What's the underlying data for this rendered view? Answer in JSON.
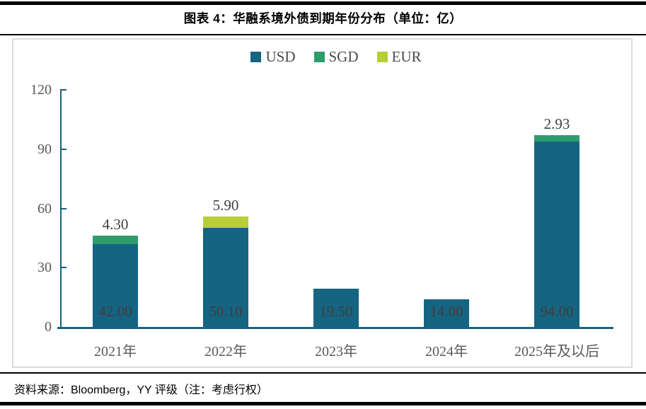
{
  "header": {
    "title": "图表 4：华融系境外债到期年份分布（单位：亿）"
  },
  "footer": {
    "source": "资料来源：Bloomberg，YY 评级（注：考虑行权）"
  },
  "colors": {
    "usd": "#156481",
    "sgd": "#2F9C6C",
    "eur": "#B7CE38",
    "axis": "#156481",
    "axis_text": "#595959",
    "value_text": "#404040"
  },
  "chart_data": {
    "type": "bar",
    "stacked": true,
    "title": "图表 4：华融系境外债到期年份分布（单位：亿）",
    "categories": [
      "2021年",
      "2022年",
      "2023年",
      "2024年",
      "2025年及以后"
    ],
    "series": [
      {
        "name": "USD",
        "color": "#156481",
        "values": [
          42.0,
          50.1,
          19.5,
          14.0,
          94.0
        ]
      },
      {
        "name": "SGD",
        "color": "#2F9C6C",
        "values": [
          4.3,
          0,
          0,
          0,
          2.93
        ]
      },
      {
        "name": "EUR",
        "color": "#B7CE38",
        "values": [
          0,
          5.9,
          0,
          0,
          0
        ]
      }
    ],
    "inside_labels": [
      "42.00",
      "50.10",
      "19.50",
      "14.00",
      "94.00"
    ],
    "above_labels": [
      "4.30",
      "5.90",
      "",
      "",
      "2.93"
    ],
    "xlabel": "",
    "ylabel": "",
    "ylim": [
      0,
      120
    ],
    "yticks": [
      0,
      30,
      60,
      90,
      120
    ],
    "grid": false,
    "legend_position": "top-center"
  }
}
